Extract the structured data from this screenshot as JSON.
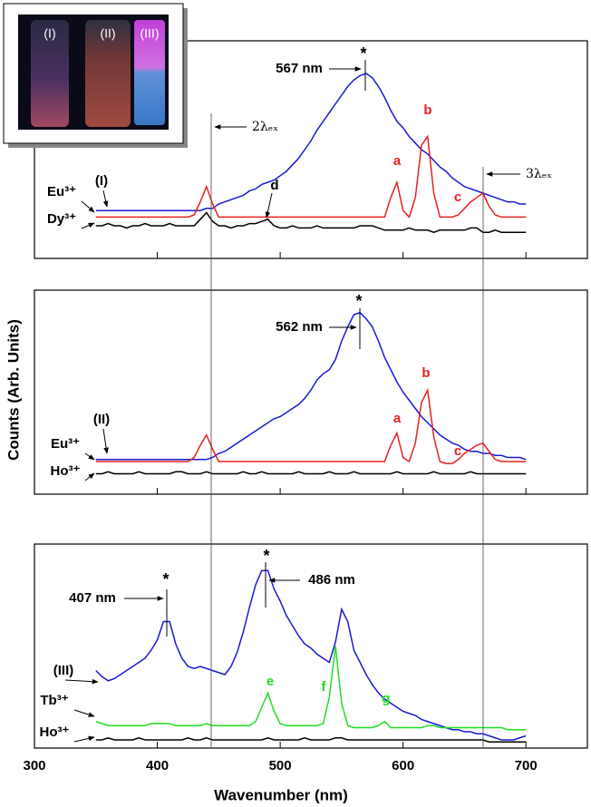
{
  "chart_data": {
    "type": "line",
    "x_label": "Wavenumber (nm)",
    "y_label": "Counts (Arb. Units)",
    "xlim": [
      300,
      750
    ],
    "xticks": [
      300,
      400,
      500,
      600,
      700
    ],
    "x": [
      350,
      355,
      360,
      365,
      370,
      375,
      380,
      385,
      390,
      395,
      400,
      405,
      410,
      415,
      420,
      425,
      430,
      435,
      440,
      445,
      450,
      455,
      460,
      465,
      470,
      475,
      480,
      485,
      490,
      495,
      500,
      505,
      510,
      515,
      520,
      525,
      530,
      535,
      540,
      545,
      550,
      555,
      560,
      565,
      570,
      575,
      580,
      585,
      590,
      595,
      600,
      605,
      610,
      615,
      620,
      625,
      630,
      635,
      640,
      645,
      650,
      655,
      660,
      665,
      670,
      675,
      680,
      685,
      690,
      695,
      700
    ],
    "panels": [
      {
        "ylim": [
          0,
          100
        ],
        "series": [
          {
            "name": "(I)",
            "color": "#1a1ad6",
            "values": [
              22,
              22,
              22,
              22,
              22,
              22,
              22,
              22,
              22,
              22,
              22,
              22,
              22,
              22,
              22,
              22,
              22,
              22,
              23,
              23,
              25,
              26,
              27,
              28,
              29,
              31,
              32,
              34,
              35,
              36,
              38,
              40,
              43,
              46,
              50,
              54,
              59,
              63,
              67,
              71,
              75,
              79,
              82,
              84,
              85,
              83,
              79,
              74,
              68,
              63,
              60,
              56,
              53,
              50,
              48,
              45,
              42,
              40,
              37,
              35,
              33,
              32,
              31,
              30,
              29,
              28,
              27,
              26,
              26,
              25,
              25
            ]
          },
          {
            "name": "Eu³⁺",
            "color": "#e8201e",
            "values": [
              19,
              19,
              19,
              19,
              19,
              19,
              19,
              19,
              19,
              19,
              19,
              19,
              19,
              19,
              19,
              19,
              20,
              26,
              33,
              25,
              19,
              19,
              19,
              19,
              19,
              19,
              19,
              19,
              19,
              19,
              19,
              19,
              19,
              19,
              19,
              19,
              19,
              19,
              19,
              19,
              19,
              19,
              19,
              19,
              19,
              19,
              19,
              19,
              28,
              35,
              22,
              19,
              28,
              52,
              56,
              30,
              19,
              19,
              19,
              20,
              23,
              26,
              28,
              30,
              24,
              20,
              19,
              19,
              19,
              19,
              19
            ]
          },
          {
            "name": "Dy³⁺",
            "color": "#000000",
            "values": [
              15,
              15,
              16,
              15,
              15,
              14,
              15,
              15,
              16,
              15,
              15,
              15,
              16,
              15,
              15,
              15,
              15,
              18,
              21,
              17,
              15,
              15,
              14,
              15,
              15,
              16,
              16,
              17,
              18,
              15,
              14,
              14,
              15,
              14,
              14,
              14,
              15,
              14,
              14,
              14,
              14,
              14,
              14,
              15,
              15,
              15,
              14,
              13,
              13,
              13,
              13,
              14,
              13,
              13,
              13,
              12,
              13,
              13,
              13,
              13,
              13,
              14,
              14,
              12,
              12,
              13,
              12,
              12,
              12,
              12,
              12
            ]
          }
        ],
        "annotations": [
          {
            "text": "567 nm"
          },
          {
            "text": "*"
          },
          {
            "text": "a",
            "color": "#e8201e"
          },
          {
            "text": "b",
            "color": "#e8201e"
          },
          {
            "text": "c",
            "color": "#e8201e"
          },
          {
            "text": "d"
          },
          {
            "text": "2λₑₓ"
          },
          {
            "text": "3λₑₓ"
          }
        ]
      },
      {
        "ylim": [
          0,
          100
        ],
        "series": [
          {
            "name": "(II)",
            "color": "#1a1ad6",
            "values": [
              17,
              17,
              17,
              17,
              17,
              17,
              17,
              17,
              17,
              17,
              17,
              17,
              17,
              17,
              17,
              17,
              17,
              17,
              17,
              18,
              20,
              21,
              23,
              25,
              27,
              29,
              31,
              33,
              35,
              37,
              38,
              40,
              42,
              44,
              47,
              51,
              56,
              59,
              61,
              66,
              75,
              82,
              88,
              89,
              86,
              82,
              75,
              67,
              61,
              55,
              50,
              46,
              42,
              38,
              35,
              32,
              29,
              27,
              25,
              24,
              22,
              21,
              21,
              20,
              20,
              19,
              19,
              18,
              18,
              18,
              17
            ]
          },
          {
            "name": "Eu³⁺",
            "color": "#e8201e",
            "values": [
              16,
              16,
              16,
              16,
              16,
              16,
              16,
              16,
              16,
              16,
              16,
              16,
              16,
              16,
              16,
              16,
              18,
              24,
              29,
              22,
              16,
              16,
              16,
              16,
              16,
              16,
              16,
              16,
              16,
              16,
              16,
              16,
              16,
              16,
              16,
              16,
              16,
              16,
              16,
              16,
              16,
              16,
              16,
              16,
              16,
              16,
              16,
              16,
              24,
              30,
              18,
              16,
              25,
              45,
              51,
              28,
              16,
              15,
              15,
              17,
              20,
              22,
              24,
              25,
              21,
              17,
              16,
              16,
              16,
              16,
              16
            ]
          },
          {
            "name": "Ho³⁺",
            "color": "#000000",
            "values": [
              10,
              10,
              11,
              10,
              10,
              10,
              10,
              11,
              10,
              10,
              10,
              10,
              10,
              11,
              11,
              10,
              10,
              10,
              11,
              10,
              10,
              10,
              10,
              10,
              11,
              10,
              10,
              11,
              10,
              10,
              10,
              10,
              10,
              11,
              10,
              10,
              10,
              10,
              11,
              10,
              10,
              10,
              11,
              10,
              10,
              10,
              10,
              10,
              10,
              11,
              10,
              10,
              10,
              10,
              10,
              11,
              10,
              10,
              10,
              10,
              10,
              11,
              10,
              10,
              10,
              10,
              10,
              10,
              10,
              10,
              10
            ]
          }
        ],
        "annotations": [
          {
            "text": "562 nm"
          },
          {
            "text": "*"
          },
          {
            "text": "a",
            "color": "#e8201e"
          },
          {
            "text": "b",
            "color": "#e8201e"
          },
          {
            "text": "c",
            "color": "#e8201e"
          }
        ]
      },
      {
        "ylim": [
          0,
          100
        ],
        "series": [
          {
            "name": "(III)",
            "color": "#1a1ad6",
            "values": [
              38,
              35,
              33,
              34,
              36,
              38,
              40,
              42,
              44,
              48,
              53,
              62,
              62,
              51,
              44,
              40,
              39,
              40,
              39,
              38,
              37,
              36,
              40,
              47,
              57,
              69,
              80,
              87,
              87,
              78,
              72,
              65,
              60,
              55,
              51,
              49,
              46,
              44,
              42,
              52,
              68,
              62,
              48,
              42,
              36,
              31,
              27,
              24,
              22,
              20,
              18,
              17,
              16,
              14,
              13,
              12,
              11,
              10,
              9,
              9,
              8,
              8,
              7,
              7,
              6,
              5,
              4,
              4,
              4,
              5,
              6
            ]
          },
          {
            "name": "Tb³⁺",
            "color": "#22dd22",
            "values": [
              13,
              12,
              11,
              11,
              11,
              11,
              11,
              11,
              11,
              12,
              12,
              12,
              12,
              11,
              11,
              11,
              11,
              11,
              12,
              11,
              11,
              11,
              11,
              11,
              11,
              11,
              13,
              20,
              27,
              18,
              12,
              11,
              11,
              11,
              11,
              11,
              11,
              12,
              25,
              50,
              22,
              11,
              10,
              10,
              10,
              10,
              11,
              13,
              10,
              10,
              10,
              10,
              10,
              10,
              11,
              11,
              10,
              10,
              10,
              10,
              10,
              10,
              10,
              10,
              10,
              10,
              10,
              9,
              9,
              9,
              9
            ]
          },
          {
            "name": "Ho³⁺",
            "color": "#000000",
            "values": [
              4,
              4,
              5,
              4,
              4,
              4,
              4,
              5,
              4,
              4,
              4,
              4,
              4,
              4,
              4,
              5,
              4,
              4,
              5,
              4,
              4,
              4,
              4,
              4,
              4,
              4,
              4,
              4,
              5,
              4,
              4,
              4,
              4,
              4,
              5,
              4,
              4,
              4,
              4,
              5,
              5,
              4,
              4,
              4,
              4,
              4,
              4,
              4,
              4,
              4,
              4,
              4,
              4,
              4,
              4,
              4,
              4,
              4,
              4,
              4,
              4,
              4,
              4,
              4,
              3,
              3,
              3,
              3,
              3,
              3,
              3
            ]
          }
        ],
        "annotations": [
          {
            "text": "407 nm"
          },
          {
            "text": "*"
          },
          {
            "text": "486 nm"
          },
          {
            "text": "*"
          },
          {
            "text": "e",
            "color": "#22dd22"
          },
          {
            "text": "f",
            "color": "#22dd22"
          },
          {
            "text": "g",
            "color": "#22dd22"
          }
        ]
      }
    ]
  },
  "inset": {
    "labels": [
      "(I)",
      "(II)",
      "(III)"
    ]
  }
}
